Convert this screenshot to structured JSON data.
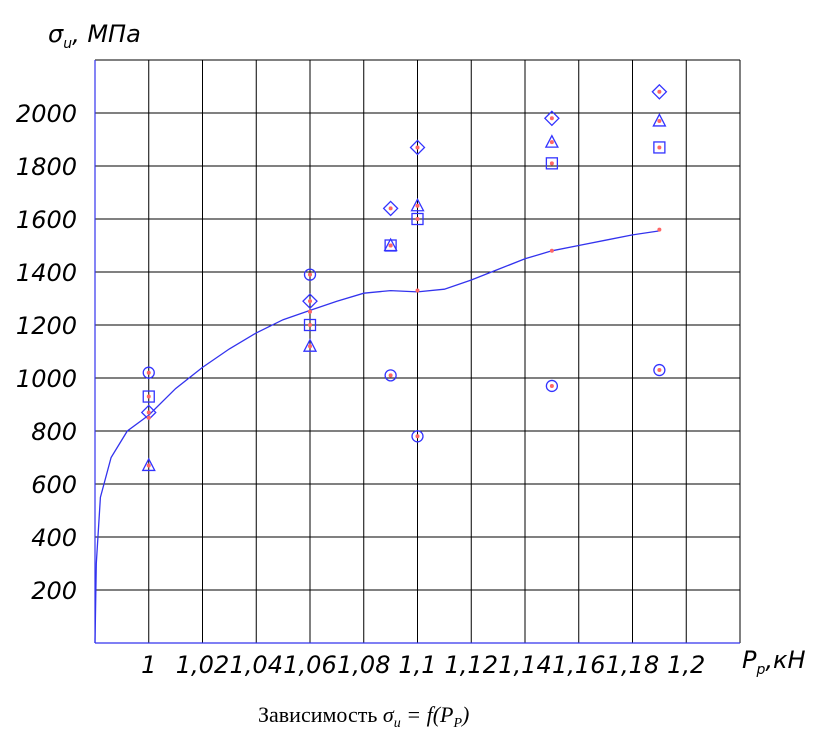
{
  "chart_data": {
    "type": "scatter",
    "y_axis_title": {
      "symbol": "σ",
      "subscript": "u",
      "unit": ", МПа"
    },
    "x_axis_title": {
      "symbol": "P",
      "subscript": "p",
      "unit": ",кН"
    },
    "caption": {
      "prefix": "Зависимость ",
      "formula_lhs": "σ",
      "formula_lhs_sub": "u",
      "formula_eq": " = f(P",
      "formula_rhs_sub": "P",
      "formula_end": ")"
    },
    "x_ticks": [
      "1",
      "1,02",
      "1,04",
      "1,06",
      "1,08",
      "1,1",
      "1,12",
      "1,14",
      "1,16",
      "1,18",
      "1,2"
    ],
    "x_tick_values": [
      1.0,
      1.02,
      1.04,
      1.06,
      1.08,
      1.1,
      1.12,
      1.14,
      1.16,
      1.18,
      1.2
    ],
    "y_ticks": [
      "200",
      "400",
      "600",
      "800",
      "1000",
      "1200",
      "1400",
      "1600",
      "1800",
      "2000"
    ],
    "y_tick_values": [
      200,
      400,
      600,
      800,
      1000,
      1200,
      1400,
      1600,
      1800,
      2000
    ],
    "xlim": [
      0.98,
      1.22
    ],
    "ylim": [
      0,
      2200
    ],
    "grid": true,
    "colors": {
      "marker": "#3333ff",
      "marker_dot": "#ff6666",
      "curve": "#3333ee",
      "grid": "#000000"
    },
    "series": [
      {
        "marker": "circle",
        "points": [
          [
            1.0,
            1020
          ],
          [
            1.06,
            1390
          ],
          [
            1.09,
            1010
          ],
          [
            1.1,
            780
          ],
          [
            1.15,
            970
          ],
          [
            1.19,
            1030
          ]
        ]
      },
      {
        "marker": "square",
        "points": [
          [
            1.0,
            930
          ],
          [
            1.06,
            1200
          ],
          [
            1.09,
            1500
          ],
          [
            1.1,
            1600
          ],
          [
            1.15,
            1810
          ],
          [
            1.19,
            1870
          ]
        ]
      },
      {
        "marker": "triangle",
        "points": [
          [
            1.0,
            670
          ],
          [
            1.06,
            1120
          ],
          [
            1.09,
            1500
          ],
          [
            1.1,
            1650
          ],
          [
            1.15,
            1890
          ],
          [
            1.19,
            1970
          ]
        ]
      },
      {
        "marker": "diamond",
        "points": [
          [
            1.0,
            870
          ],
          [
            1.06,
            1290
          ],
          [
            1.09,
            1640
          ],
          [
            1.1,
            1870
          ],
          [
            1.15,
            1980
          ],
          [
            1.19,
            2080
          ]
        ]
      },
      {
        "marker": "dot",
        "points": [
          [
            1.0,
            850
          ],
          [
            1.06,
            1250
          ],
          [
            1.1,
            1330
          ],
          [
            1.15,
            1480
          ],
          [
            1.19,
            1560
          ]
        ]
      }
    ],
    "curve": [
      [
        0.98,
        0
      ],
      [
        0.9805,
        300
      ],
      [
        0.982,
        550
      ],
      [
        0.986,
        700
      ],
      [
        0.992,
        800
      ],
      [
        1.0,
        860
      ],
      [
        1.01,
        960
      ],
      [
        1.02,
        1040
      ],
      [
        1.03,
        1110
      ],
      [
        1.04,
        1170
      ],
      [
        1.05,
        1220
      ],
      [
        1.06,
        1255
      ],
      [
        1.07,
        1290
      ],
      [
        1.08,
        1320
      ],
      [
        1.09,
        1330
      ],
      [
        1.1,
        1325
      ],
      [
        1.11,
        1335
      ],
      [
        1.12,
        1370
      ],
      [
        1.13,
        1410
      ],
      [
        1.14,
        1450
      ],
      [
        1.15,
        1480
      ],
      [
        1.16,
        1500
      ],
      [
        1.17,
        1520
      ],
      [
        1.18,
        1540
      ],
      [
        1.19,
        1555
      ]
    ]
  }
}
